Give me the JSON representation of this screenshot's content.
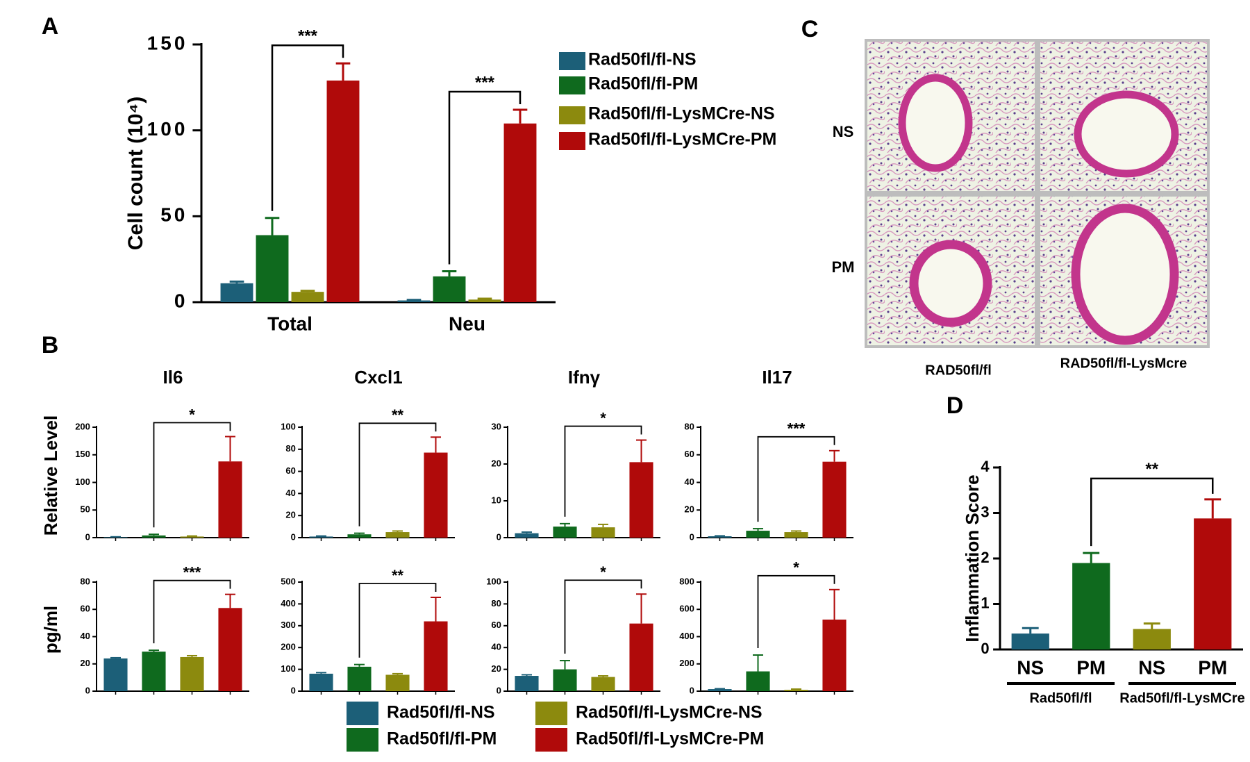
{
  "chart_data": [
    {
      "type": "bar",
      "label": "A",
      "ylabel": "Cell count (10⁴)",
      "categories": [
        "Total",
        "Neu"
      ],
      "series": [
        {
          "name": "Rad50fl/fl-NS",
          "color": "#1c5f78",
          "values": [
            11,
            1
          ],
          "errors": [
            1,
            0.3
          ]
        },
        {
          "name": "Rad50fl/fl-PM",
          "color": "#0f6a1e",
          "values": [
            39,
            15
          ],
          "errors": [
            10,
            3
          ]
        },
        {
          "name": "Rad50fl/fl-LysMCre-NS",
          "color": "#8c8a0e",
          "values": [
            6,
            1.5
          ],
          "errors": [
            0.6,
            0.5
          ]
        },
        {
          "name": "Rad50fl/fl-LysMCre-PM",
          "color": "#b00a0a",
          "values": [
            129,
            104
          ],
          "errors": [
            10,
            8
          ]
        }
      ],
      "ylim": [
        0,
        150
      ],
      "yticks": [
        0,
        50,
        100,
        150
      ],
      "annotations": [
        {
          "text": "***",
          "category": 0,
          "between": [
            1,
            3
          ]
        },
        {
          "text": "***",
          "category": 1,
          "between": [
            1,
            3
          ]
        }
      ]
    },
    {
      "type": "bar",
      "label": "B",
      "title": "Il6",
      "ylabel": "Relative Level",
      "values": [
        1,
        4,
        2,
        138
      ],
      "errors": [
        0.5,
        2,
        1,
        45
      ],
      "colors": [
        "#1c5f78",
        "#0f6a1e",
        "#8c8a0e",
        "#b00a0a"
      ],
      "ylim": [
        0,
        200
      ],
      "yticks": [
        0,
        50,
        100,
        150,
        200
      ],
      "annotations": [
        {
          "text": "*",
          "between": [
            1,
            3
          ]
        }
      ]
    },
    {
      "type": "bar",
      "title": "Cxcl1",
      "values": [
        1,
        3,
        5,
        77
      ],
      "errors": [
        0.5,
        1,
        1,
        14
      ],
      "colors": [
        "#1c5f78",
        "#0f6a1e",
        "#8c8a0e",
        "#b00a0a"
      ],
      "ylim": [
        0,
        100
      ],
      "yticks": [
        0,
        20,
        40,
        60,
        80,
        100
      ],
      "annotations": [
        {
          "text": "**",
          "between": [
            1,
            3
          ]
        }
      ]
    },
    {
      "type": "bar",
      "title": "Ifnγ",
      "values": [
        1.2,
        3,
        2.8,
        20.5
      ],
      "errors": [
        0.3,
        0.8,
        0.8,
        6
      ],
      "colors": [
        "#1c5f78",
        "#0f6a1e",
        "#8c8a0e",
        "#b00a0a"
      ],
      "ylim": [
        0,
        30
      ],
      "yticks": [
        0,
        10,
        20,
        30
      ],
      "annotations": [
        {
          "text": "*",
          "between": [
            1,
            3
          ]
        }
      ]
    },
    {
      "type": "bar",
      "title": "Il17",
      "values": [
        1,
        5,
        4,
        55
      ],
      "errors": [
        0.3,
        1.5,
        0.8,
        8
      ],
      "colors": [
        "#1c5f78",
        "#0f6a1e",
        "#8c8a0e",
        "#b00a0a"
      ],
      "ylim": [
        0,
        80
      ],
      "yticks": [
        0,
        20,
        40,
        60,
        80
      ],
      "annotations": [
        {
          "text": "***",
          "between": [
            1,
            3
          ]
        }
      ]
    },
    {
      "type": "bar",
      "ylabel": "pg/ml",
      "values": [
        24,
        29,
        25,
        61
      ],
      "errors": [
        0.5,
        1,
        1,
        10
      ],
      "colors": [
        "#1c5f78",
        "#0f6a1e",
        "#8c8a0e",
        "#b00a0a"
      ],
      "ylim": [
        0,
        80
      ],
      "yticks": [
        0,
        20,
        40,
        60,
        80
      ],
      "annotations": [
        {
          "text": "***",
          "between": [
            1,
            3
          ]
        }
      ]
    },
    {
      "type": "bar",
      "values": [
        80,
        112,
        75,
        320
      ],
      "errors": [
        5,
        10,
        5,
        110
      ],
      "colors": [
        "#1c5f78",
        "#0f6a1e",
        "#8c8a0e",
        "#b00a0a"
      ],
      "ylim": [
        0,
        500
      ],
      "yticks": [
        0,
        100,
        200,
        300,
        400,
        500
      ],
      "annotations": [
        {
          "text": "**",
          "between": [
            1,
            3
          ]
        }
      ]
    },
    {
      "type": "bar",
      "values": [
        14,
        20,
        13,
        62
      ],
      "errors": [
        1,
        8,
        1,
        27
      ],
      "colors": [
        "#1c5f78",
        "#0f6a1e",
        "#8c8a0e",
        "#b00a0a"
      ],
      "ylim": [
        0,
        100
      ],
      "yticks": [
        0,
        20,
        40,
        60,
        80,
        100
      ],
      "annotations": [
        {
          "text": "*",
          "between": [
            1,
            3
          ]
        }
      ]
    },
    {
      "type": "bar",
      "values": [
        15,
        145,
        10,
        525
      ],
      "errors": [
        3,
        120,
        5,
        220
      ],
      "colors": [
        "#1c5f78",
        "#0f6a1e",
        "#8c8a0e",
        "#b00a0a"
      ],
      "ylim": [
        0,
        800
      ],
      "yticks": [
        0,
        200,
        400,
        600,
        800
      ],
      "annotations": [
        {
          "text": "*",
          "between": [
            1,
            3
          ]
        }
      ]
    },
    {
      "type": "bar",
      "label": "D",
      "ylabel": "Inflammation Score",
      "categories": [
        "NS",
        "PM",
        "NS",
        "PM"
      ],
      "groups": [
        "Rad50fl/fl",
        "Rad50fl/fl-LysMCre"
      ],
      "values": [
        0.35,
        1.9,
        0.45,
        2.88
      ],
      "errors": [
        0.12,
        0.22,
        0.12,
        0.42
      ],
      "colors": [
        "#1c5f78",
        "#0f6a1e",
        "#8c8a0e",
        "#b00a0a"
      ],
      "ylim": [
        0,
        4
      ],
      "yticks": [
        0,
        1,
        2,
        3,
        4
      ],
      "annotations": [
        {
          "text": "**",
          "between": [
            1,
            3
          ]
        }
      ]
    }
  ],
  "panel_b_legend": [
    {
      "name": "Rad50fl/fl-NS",
      "color": "#1c5f78"
    },
    {
      "name": "Rad50fl/fl-PM",
      "color": "#0f6a1e"
    },
    {
      "name": "Rad50fl/fl-LysMCre-NS",
      "color": "#8c8a0e"
    },
    {
      "name": "Rad50fl/fl-LysMCre-PM",
      "color": "#b00a0a"
    }
  ],
  "panel_c": {
    "label": "C",
    "rows": [
      "NS",
      "PM"
    ],
    "columns": [
      "RAD50fl/fl",
      "RAD50fl/fl-LysMcre"
    ]
  }
}
